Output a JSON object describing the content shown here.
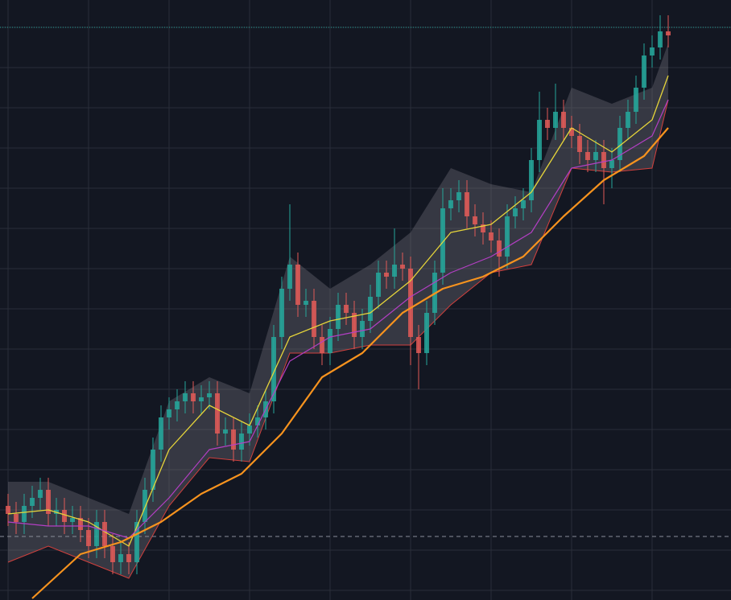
{
  "chart_data": {
    "type": "candlestick",
    "background": "#131722",
    "grid": true,
    "grid_color": "#2a2e39",
    "up_color": "#26a69a",
    "down_color": "#e05a57",
    "xlim": [
      -1,
      89.8
    ],
    "ylim": [
      -2.4,
      146.8
    ],
    "xticks": [
      0,
      10,
      20,
      30,
      40,
      50,
      60,
      70,
      80
    ],
    "yticks": [
      0,
      10,
      20,
      30,
      40,
      50,
      60,
      70,
      80,
      90,
      100,
      110,
      120,
      130,
      140
    ],
    "ohlc": [
      [
        21,
        24,
        16,
        19
      ],
      [
        19,
        22,
        14,
        17
      ],
      [
        17,
        24,
        14,
        21
      ],
      [
        21,
        26,
        18,
        23
      ],
      [
        23,
        28,
        20,
        25
      ],
      [
        25,
        28,
        16,
        19
      ],
      [
        19,
        23,
        16,
        20
      ],
      [
        20,
        23,
        14,
        17
      ],
      [
        17,
        21,
        14,
        18
      ],
      [
        18,
        21,
        12,
        15
      ],
      [
        15,
        18,
        8,
        11
      ],
      [
        11,
        20,
        8,
        17
      ],
      [
        17,
        20,
        8,
        11
      ],
      [
        11,
        14,
        4,
        7
      ],
      [
        7,
        12,
        4,
        9
      ],
      [
        9,
        12,
        4,
        7
      ],
      [
        7,
        20,
        4,
        17
      ],
      [
        17,
        28,
        14,
        25
      ],
      [
        25,
        38,
        22,
        35
      ],
      [
        35,
        46,
        32,
        43
      ],
      [
        43,
        48,
        40,
        45
      ],
      [
        45,
        50,
        42,
        47
      ],
      [
        47,
        52,
        44,
        49
      ],
      [
        49,
        52,
        44,
        47
      ],
      [
        47,
        51,
        44,
        48
      ],
      [
        48,
        52,
        45,
        49
      ],
      [
        49,
        52,
        36,
        39
      ],
      [
        39,
        43,
        36,
        40
      ],
      [
        40,
        43,
        32,
        35
      ],
      [
        35,
        42,
        32,
        39
      ],
      [
        39,
        44,
        36,
        41
      ],
      [
        41,
        46,
        38,
        43
      ],
      [
        43,
        50,
        40,
        47
      ],
      [
        47,
        66,
        44,
        63
      ],
      [
        63,
        78,
        60,
        75
      ],
      [
        75,
        96,
        72,
        81
      ],
      [
        81,
        84,
        68,
        71
      ],
      [
        71,
        75,
        68,
        72
      ],
      [
        72,
        75,
        60,
        63
      ],
      [
        63,
        66,
        56,
        59
      ],
      [
        59,
        68,
        56,
        65
      ],
      [
        65,
        74,
        62,
        71
      ],
      [
        71,
        74,
        66,
        69
      ],
      [
        69,
        72,
        60,
        63
      ],
      [
        63,
        70,
        60,
        67
      ],
      [
        67,
        76,
        64,
        73
      ],
      [
        73,
        82,
        70,
        79
      ],
      [
        79,
        82,
        75,
        78
      ],
      [
        78,
        90,
        75,
        81
      ],
      [
        81,
        84,
        77,
        80
      ],
      [
        80,
        83,
        56,
        63
      ],
      [
        63,
        66,
        50,
        59
      ],
      [
        59,
        72,
        56,
        69
      ],
      [
        69,
        82,
        66,
        79
      ],
      [
        79,
        100,
        76,
        95
      ],
      [
        95,
        100,
        92,
        97
      ],
      [
        97,
        102,
        94,
        99
      ],
      [
        99,
        102,
        90,
        93
      ],
      [
        93,
        96,
        88,
        91
      ],
      [
        91,
        94,
        86,
        89
      ],
      [
        89,
        92,
        84,
        87
      ],
      [
        87,
        90,
        78,
        83
      ],
      [
        83,
        96,
        80,
        93
      ],
      [
        93,
        98,
        90,
        95
      ],
      [
        95,
        100,
        92,
        97
      ],
      [
        97,
        110,
        94,
        107
      ],
      [
        107,
        124,
        104,
        117
      ],
      [
        117,
        120,
        112,
        115
      ],
      [
        115,
        126,
        112,
        119
      ],
      [
        119,
        122,
        112,
        115
      ],
      [
        115,
        118,
        110,
        113
      ],
      [
        113,
        116,
        106,
        109
      ],
      [
        109,
        112,
        104,
        107
      ],
      [
        107,
        112,
        104,
        109
      ],
      [
        109,
        112,
        96,
        105
      ],
      [
        105,
        110,
        100,
        107
      ],
      [
        107,
        118,
        104,
        115
      ],
      [
        115,
        122,
        112,
        119
      ],
      [
        119,
        128,
        116,
        125
      ],
      [
        125,
        136,
        122,
        133
      ],
      [
        133,
        138,
        130,
        135
      ],
      [
        135,
        143,
        132,
        139
      ],
      [
        139,
        143,
        135,
        138
      ]
    ],
    "band": {
      "fill": "rgba(120,118,130,0.35)",
      "edge_color": "#d2403d",
      "x": [
        0,
        5,
        10,
        15,
        20,
        25,
        30,
        35,
        40,
        45,
        50,
        55,
        60,
        65,
        70,
        75,
        80,
        82
      ],
      "upper": [
        27,
        27,
        23,
        19,
        47,
        53,
        49,
        83,
        75,
        81,
        89,
        105,
        101,
        99,
        125,
        121,
        125,
        136
      ],
      "lower": [
        7,
        11,
        7,
        3,
        21,
        33,
        32,
        59,
        59,
        61,
        61,
        71,
        79,
        81,
        105,
        104,
        105,
        122
      ]
    },
    "overlays": [
      {
        "color": "#e6d53a",
        "width": 1.3,
        "x": [
          0,
          5,
          10,
          15,
          20,
          25,
          30,
          35,
          40,
          45,
          50,
          55,
          60,
          65,
          70,
          75,
          80,
          82
        ],
        "values": [
          19,
          20,
          17,
          11,
          35,
          46,
          41,
          63,
          67,
          69,
          77,
          89,
          91,
          99,
          115,
          109,
          117,
          128
        ]
      },
      {
        "color": "#b43fc4",
        "width": 1.2,
        "x": [
          0,
          5,
          10,
          15,
          20,
          25,
          30,
          35,
          40,
          45,
          50,
          55,
          60,
          65,
          70,
          75,
          80,
          82
        ],
        "values": [
          17,
          16,
          16,
          13,
          23,
          35,
          37,
          57,
          63,
          65,
          73,
          79,
          83,
          89,
          105,
          107,
          113,
          122
        ]
      },
      {
        "color": "#f7931e",
        "width": 2.2,
        "x": [
          3,
          9,
          14,
          19,
          24,
          29,
          34,
          39,
          44,
          49,
          54,
          59,
          64,
          69,
          74,
          79,
          82
        ],
        "values": [
          -2,
          9,
          12,
          17,
          24,
          29,
          39,
          53,
          59,
          69,
          75,
          78,
          83,
          93,
          102,
          108,
          115
        ]
      }
    ],
    "reference_lines": [
      {
        "value": 140,
        "color": "#26a69a",
        "dash": "1 2"
      },
      {
        "value": 13.4,
        "color": "#8a8e99",
        "dash": "5 4"
      }
    ]
  }
}
